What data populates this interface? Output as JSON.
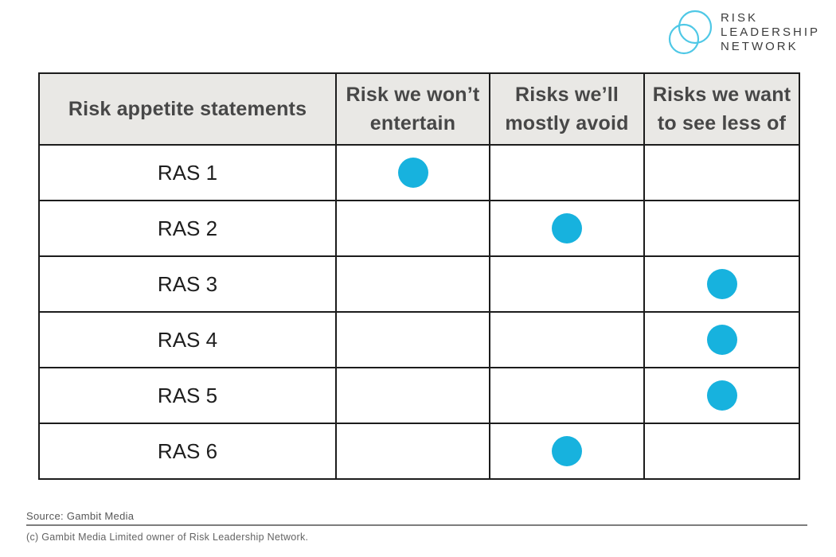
{
  "logo": {
    "lines": [
      "RISK",
      "LEADERSHIP",
      "NETWORK"
    ],
    "circle_color": "#4fc8e6",
    "text_color": "#3c3c3c"
  },
  "chart_data": {
    "type": "table",
    "title": "Risk appetite statements matrix",
    "columns": [
      "Risk appetite statements",
      "Risk we won’t entertain",
      "Risks we’ll mostly avoid",
      "Risks we want to see less of"
    ],
    "rows": [
      {
        "label": "RAS 1",
        "marker_column": "Risk we won’t entertain",
        "marker_column_index": 1
      },
      {
        "label": "RAS 2",
        "marker_column": "Risks we’ll mostly avoid",
        "marker_column_index": 2
      },
      {
        "label": "RAS 3",
        "marker_column": "Risks we want to see less of",
        "marker_column_index": 3
      },
      {
        "label": "RAS 4",
        "marker_column": "Risks we want to see less of",
        "marker_column_index": 3
      },
      {
        "label": "RAS 5",
        "marker_column": "Risks we want to see less of",
        "marker_column_index": 3
      },
      {
        "label": "RAS 6",
        "marker_column": "Risks we’ll mostly avoid",
        "marker_column_index": 2
      }
    ],
    "marker": "filled-circle",
    "marker_color": "#17b2de",
    "header_background": "#e9e8e5",
    "border_color": "#1c1c1c"
  },
  "footer": {
    "source": "Source: Gambit Media",
    "copyright": "(c) Gambit Media Limited owner of Risk Leadership Network."
  }
}
